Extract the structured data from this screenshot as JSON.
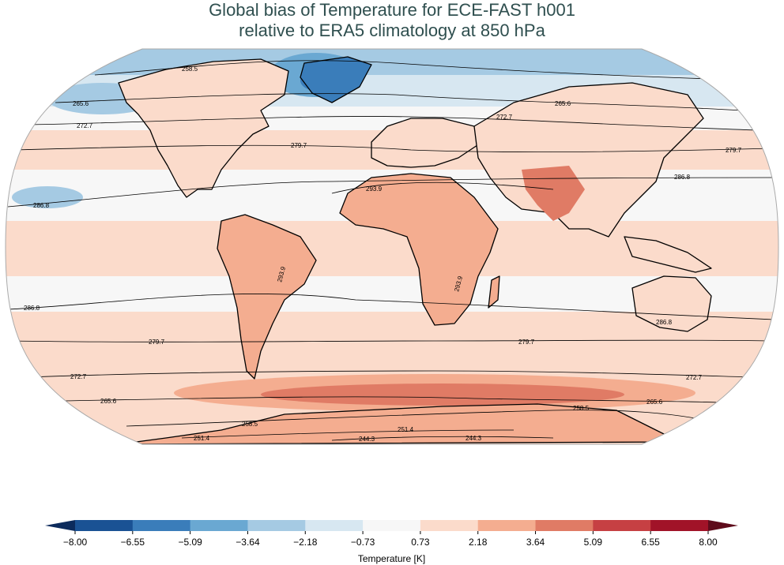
{
  "title": {
    "line1": "Global bias of Temperature for ECE-FAST h001",
    "line2": "relative to ERA5 climatology at 850 hPa"
  },
  "map": {
    "projection": "Robinson",
    "variable": "Temperature",
    "contour_labels": [
      "258.5",
      "265.6",
      "265.6",
      "272.7",
      "272.7",
      "279.7",
      "279.7",
      "286.8",
      "293.9",
      "286.8",
      "293.9",
      "293.9",
      "286.8",
      "286.8",
      "279.7",
      "279.7",
      "272.7",
      "272.7",
      "265.6",
      "265.6",
      "258.5",
      "258.5",
      "251.4",
      "251.4",
      "244.3",
      "244.3"
    ]
  },
  "colorbar": {
    "label": "Temperature [K]",
    "ticks": [
      "−8.00",
      "−6.55",
      "−5.09",
      "−3.64",
      "−2.18",
      "−0.73",
      "0.73",
      "2.18",
      "3.64",
      "5.09",
      "6.55",
      "8.00"
    ],
    "colors": [
      "#1a5294",
      "#3a7dba",
      "#6aa8d2",
      "#a5cae3",
      "#d7e7f1",
      "#f7f7f7",
      "#fbdbcb",
      "#f4ad90",
      "#e07b65",
      "#c64043",
      "#a11328"
    ],
    "under_color": "#0c2b5c",
    "over_color": "#5e0b1b"
  }
}
